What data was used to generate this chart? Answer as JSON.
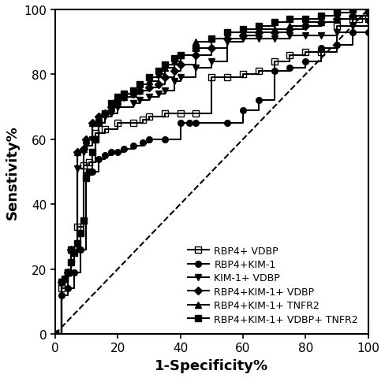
{
  "title": "",
  "xlabel": "1-Specificity%",
  "ylabel": "Senstivity%",
  "xlim": [
    0,
    100
  ],
  "ylim": [
    0,
    100
  ],
  "xticks": [
    0,
    20,
    40,
    60,
    80,
    100
  ],
  "yticks": [
    0,
    20,
    40,
    60,
    80,
    100
  ],
  "background_color": "#ffffff",
  "line_color": "#000000",
  "series": [
    {
      "label": "RBP4+ VDBP",
      "marker": "s",
      "fillstyle": "none",
      "x": [
        0,
        2,
        4,
        5,
        7,
        9,
        11,
        13,
        16,
        20,
        25,
        28,
        30,
        35,
        40,
        45,
        50,
        55,
        60,
        65,
        70,
        75,
        80,
        85,
        90,
        95,
        97,
        100
      ],
      "y": [
        0,
        14,
        19,
        26,
        33,
        52,
        53,
        62,
        63,
        65,
        65,
        66,
        67,
        68,
        68,
        68,
        79,
        79,
        80,
        81,
        84,
        86,
        87,
        87,
        95,
        97,
        97,
        97
      ]
    },
    {
      "label": "RBP4+KIM-1",
      "marker": "o",
      "fillstyle": "full",
      "x": [
        0,
        2,
        4,
        6,
        8,
        10,
        12,
        14,
        16,
        18,
        20,
        22,
        25,
        28,
        30,
        35,
        40,
        43,
        45,
        55,
        60,
        65,
        70,
        75,
        80,
        85,
        90,
        95,
        100
      ],
      "y": [
        0,
        12,
        14,
        19,
        26,
        49,
        50,
        54,
        55,
        56,
        56,
        57,
        58,
        59,
        60,
        60,
        65,
        65,
        65,
        65,
        69,
        72,
        81,
        82,
        84,
        88,
        89,
        93,
        93
      ]
    },
    {
      "label": "KIM-1+ VDBP",
      "marker": "v",
      "fillstyle": "full",
      "x": [
        0,
        2,
        4,
        5,
        7,
        9,
        10,
        12,
        14,
        16,
        18,
        20,
        25,
        27,
        30,
        33,
        35,
        38,
        40,
        45,
        50,
        55,
        60,
        65,
        70,
        75,
        80,
        85,
        90,
        95,
        100
      ],
      "y": [
        0,
        16,
        19,
        26,
        51,
        56,
        58,
        60,
        65,
        67,
        68,
        70,
        71,
        72,
        73,
        74,
        75,
        78,
        79,
        82,
        84,
        90,
        91,
        91,
        91,
        92,
        92,
        92,
        93,
        95,
        96
      ]
    },
    {
      "label": "RBP4+KIM-1+ VDBP",
      "marker": "D",
      "fillstyle": "full",
      "x": [
        0,
        2,
        4,
        5,
        7,
        9,
        10,
        12,
        14,
        16,
        18,
        20,
        22,
        25,
        27,
        30,
        33,
        35,
        38,
        40,
        45,
        50,
        55,
        60,
        65,
        70,
        75,
        80,
        85,
        90,
        95,
        100
      ],
      "y": [
        0,
        16,
        19,
        26,
        56,
        57,
        60,
        65,
        67,
        68,
        70,
        72,
        73,
        74,
        75,
        76,
        77,
        79,
        81,
        83,
        86,
        88,
        91,
        92,
        93,
        93,
        94,
        95,
        96,
        97,
        98,
        99
      ]
    },
    {
      "label": "RBP4+KIM-1+ TNFR2",
      "marker": "^",
      "fillstyle": "full",
      "x": [
        0,
        2,
        4,
        5,
        7,
        9,
        10,
        12,
        14,
        16,
        18,
        20,
        22,
        25,
        27,
        30,
        33,
        35,
        38,
        40,
        45,
        50,
        55,
        60,
        65,
        70,
        75,
        80,
        85,
        90,
        95,
        100
      ],
      "y": [
        0,
        16,
        19,
        26,
        56,
        57,
        60,
        65,
        67,
        68,
        70,
        72,
        73,
        74,
        75,
        78,
        80,
        82,
        84,
        86,
        90,
        91,
        93,
        93,
        94,
        94,
        95,
        96,
        96,
        97,
        98,
        100
      ]
    },
    {
      "label": "RBP4+KIM-1+ VDBP+ TNFR2",
      "marker": "s",
      "fillstyle": "full",
      "x": [
        0,
        2,
        3,
        4,
        5,
        6,
        7,
        8,
        9,
        10,
        11,
        12,
        13,
        14,
        16,
        18,
        20,
        22,
        25,
        27,
        30,
        33,
        35,
        38,
        40,
        45,
        50,
        55,
        60,
        65,
        70,
        75,
        80,
        85,
        90,
        95,
        100
      ],
      "y": [
        0,
        16,
        17,
        19,
        22,
        25,
        28,
        31,
        35,
        48,
        50,
        56,
        60,
        65,
        68,
        71,
        73,
        74,
        75,
        77,
        79,
        81,
        83,
        85,
        86,
        88,
        91,
        93,
        94,
        95,
        96,
        97,
        97,
        98,
        99,
        100,
        100
      ]
    }
  ],
  "reference_line": {
    "x": [
      0,
      100
    ],
    "y": [
      0,
      100
    ]
  },
  "figsize": [
    4.88,
    4.81
  ],
  "dpi": 100,
  "tick_fontsize": 11,
  "label_fontsize": 13,
  "legend_fontsize": 9,
  "linewidth": 1.5,
  "markersize": 5.5
}
